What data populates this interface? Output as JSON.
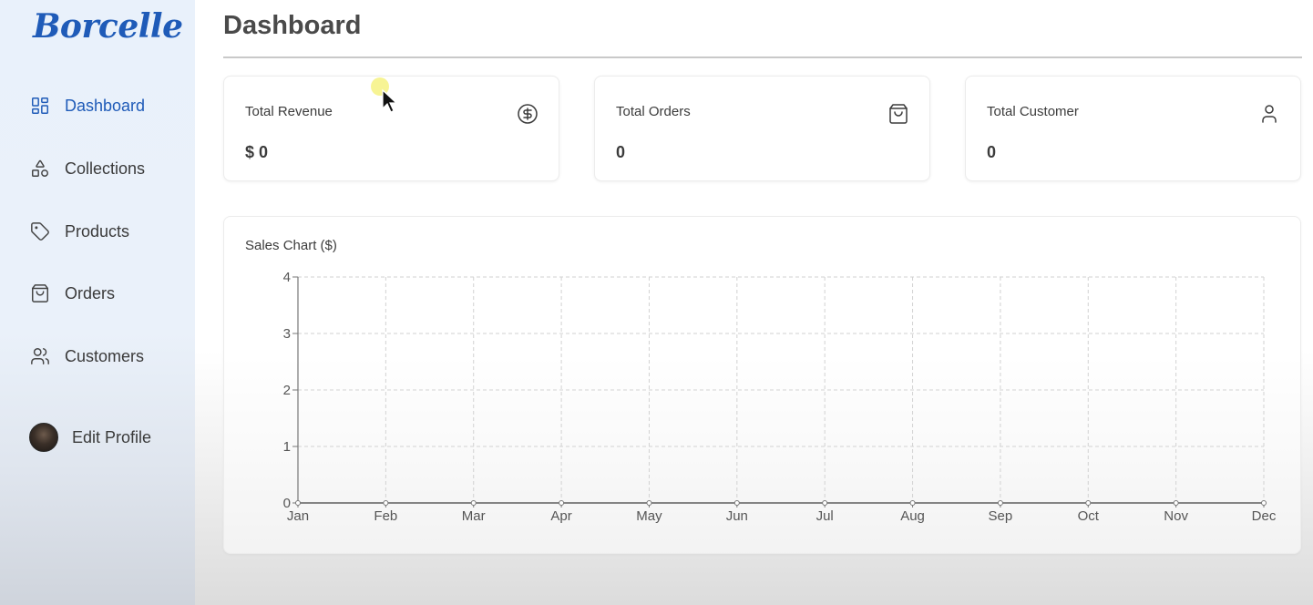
{
  "app": {
    "logo": "Borcelle"
  },
  "sidebar": {
    "items": [
      {
        "label": "Dashboard",
        "icon": "layout-dashboard-icon",
        "active": true
      },
      {
        "label": "Collections",
        "icon": "shapes-icon",
        "active": false
      },
      {
        "label": "Products",
        "icon": "tag-icon",
        "active": false
      },
      {
        "label": "Orders",
        "icon": "shopping-bag-icon",
        "active": false
      },
      {
        "label": "Customers",
        "icon": "users-icon",
        "active": false
      }
    ],
    "profile": {
      "label": "Edit Profile"
    }
  },
  "main": {
    "title": "Dashboard",
    "cards": [
      {
        "title": "Total Revenue",
        "value": "$ 0",
        "icon": "dollar-circle-icon"
      },
      {
        "title": "Total Orders",
        "value": "0",
        "icon": "shopping-bag-icon"
      },
      {
        "title": "Total Customer",
        "value": "0",
        "icon": "user-icon"
      }
    ],
    "chart": {
      "title": "Sales Chart ($)"
    }
  },
  "colors": {
    "accent": "#1f5bb8",
    "text": "#3b3b3b",
    "grid": "#d5d5d5"
  },
  "chart_data": {
    "type": "line",
    "title": "Sales Chart ($)",
    "categories": [
      "Jan",
      "Feb",
      "Mar",
      "Apr",
      "May",
      "Jun",
      "Jul",
      "Aug",
      "Sep",
      "Oct",
      "Nov",
      "Dec"
    ],
    "series": [
      {
        "values": [
          0,
          0,
          0,
          0,
          0,
          0,
          0,
          0,
          0,
          0,
          0,
          0
        ]
      }
    ],
    "yticks": [
      "0",
      "1",
      "2",
      "3",
      "4"
    ],
    "ylim": [
      0,
      4
    ],
    "grid": true,
    "xlabel": "",
    "ylabel": ""
  }
}
